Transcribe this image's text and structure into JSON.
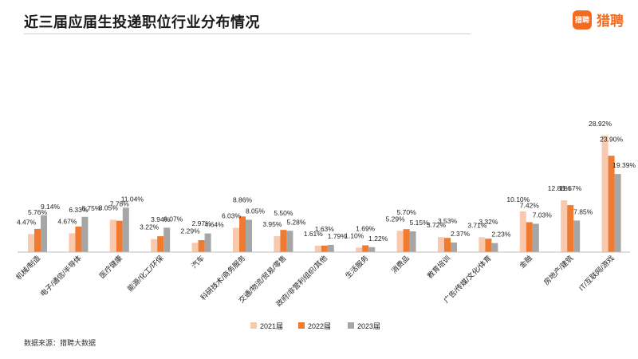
{
  "header": {
    "title": "近三届应届生投递职位行业分布情况",
    "brand_logo_text": "猎聘",
    "brand_name": "猎聘"
  },
  "footer": {
    "source": "数据来源：猎聘大数据"
  },
  "colors": {
    "s2021": "#f8c9ac",
    "s2022": "#ef7a31",
    "s2023": "#a6a6a6",
    "brand": "#f36b21"
  },
  "chart_data": {
    "type": "bar",
    "title": "近三届应届生投递职位行业分布情况",
    "xlabel": "",
    "ylabel": "",
    "ylim": [
      0,
      30
    ],
    "grid": false,
    "legend": "bottom-center",
    "categories": [
      "机械/制造",
      "电子/通信/半导体",
      "医疗健康",
      "能源/化工/环保",
      "汽车",
      "科研技术/商务服务",
      "交通/物流/贸易/零售",
      "政府/非营利组织/其他",
      "生活服务",
      "消费品",
      "教育培训",
      "广告/传媒/文化/体育",
      "金融",
      "房地产/建筑",
      "IT/互联网/游戏"
    ],
    "series": [
      {
        "name": "2021届",
        "values": [
          4.47,
          4.67,
          8.05,
          3.22,
          2.29,
          6.03,
          3.95,
          1.61,
          1.1,
          5.29,
          3.72,
          3.71,
          10.1,
          12.86,
          28.92
        ],
        "labels": [
          "4.47%",
          "4.67%",
          "8.05%",
          "3.22%",
          "2.29%",
          "6.03%",
          "3.95%",
          "1.61%",
          "1.10%",
          "5.29%",
          "3.72%",
          "3.71%",
          "10.10%",
          "12.86%",
          "28.92%"
        ]
      },
      {
        "name": "2022届",
        "values": [
          5.76,
          6.33,
          7.78,
          3.94,
          2.97,
          8.86,
          5.5,
          1.63,
          1.69,
          5.7,
          3.53,
          3.32,
          7.42,
          11.67,
          23.9
        ],
        "labels": [
          "5.76%",
          "6.33%",
          "7.78%",
          "3.94%",
          "2.97%",
          "8.86%",
          "5.50%",
          "1.63%",
          "1.69%",
          "5.70%",
          "3.53%",
          "3.32%",
          "7.42%",
          "11.67%",
          "23.90%"
        ]
      },
      {
        "name": "2023届",
        "values": [
          9.14,
          8.75,
          11.04,
          6.07,
          4.64,
          8.05,
          5.28,
          1.79,
          1.22,
          5.15,
          2.37,
          2.23,
          7.03,
          7.85,
          19.39
        ],
        "labels": [
          "9.14%",
          "8.75%",
          "11.04%",
          "6.07%",
          "4.64%",
          "8.05%",
          "5.28%",
          "1.79%",
          "1.22%",
          "5.15%",
          "2.37%",
          "2.23%",
          "7.03%",
          "7.85%",
          "19.39%"
        ]
      }
    ]
  }
}
